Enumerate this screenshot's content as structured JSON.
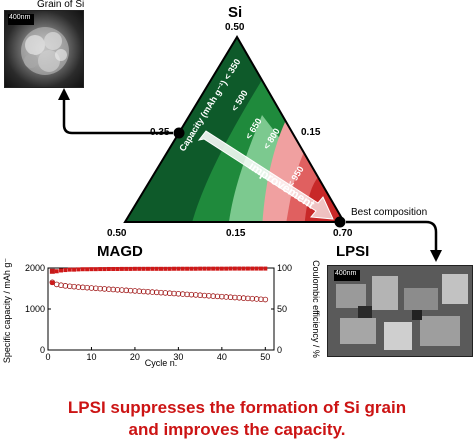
{
  "photos": {
    "grain": {
      "caption": "Grain of Si",
      "scale_text": "400nm"
    },
    "lpsi": {
      "caption": "Best composition",
      "scale_text": "400nm"
    }
  },
  "ternary": {
    "vertices": {
      "top": "Si",
      "left": "MAGD",
      "right": "LPSI"
    },
    "ticks": {
      "top": "0.50",
      "left_edge": "0.35",
      "right_edge": "0.15",
      "bottom_left": "0.50",
      "bottom_mid": "0.15",
      "bottom_right": "0.70"
    },
    "contour_labels": {
      "c350": "Capacity (mAh g⁻¹) < 350",
      "c500": "< 500",
      "c650": "< 650",
      "c800": "< 800",
      "c950": "< 950"
    },
    "arrow_label": "improvement",
    "colors": {
      "z1": "#0e5a2a",
      "z2": "#1f8a3c",
      "z3": "#7cc98f",
      "z4": "#f0a0a0",
      "z5": "#e06060",
      "z6": "#c82828"
    }
  },
  "chart_data": {
    "type": "scatter",
    "title": "",
    "xlabel": "Cycle n.",
    "ylabel_left": "Specific capacity / mAh g⁻¹",
    "ylabel_right": "Coulombic efficiency / %",
    "xlim": [
      0,
      52
    ],
    "ylim_left": [
      0,
      2000
    ],
    "ylim_right": [
      0,
      100
    ],
    "x_ticks": [
      "0",
      "10",
      "20",
      "30",
      "40",
      "50"
    ],
    "y_left_ticks": [
      "0",
      "1000",
      "2000"
    ],
    "y_right_ticks": [
      "0",
      "50",
      "100"
    ],
    "series": [
      {
        "axis": "left",
        "marker": "square-filled",
        "x": [
          1
        ],
        "values": [
          1920
        ]
      },
      {
        "axis": "left",
        "marker": "circle-open",
        "x": [
          1,
          2,
          3,
          4,
          5,
          6,
          7,
          8,
          9,
          10,
          11,
          12,
          13,
          14,
          15,
          16,
          17,
          18,
          19,
          20,
          21,
          22,
          23,
          24,
          25,
          26,
          27,
          28,
          29,
          30,
          31,
          32,
          33,
          34,
          35,
          36,
          37,
          38,
          39,
          40,
          41,
          42,
          43,
          44,
          45,
          46,
          47,
          48,
          49,
          50
        ],
        "values": [
          1650,
          1600,
          1580,
          1565,
          1555,
          1545,
          1535,
          1528,
          1520,
          1512,
          1505,
          1497,
          1490,
          1483,
          1476,
          1469,
          1462,
          1455,
          1448,
          1441,
          1434,
          1427,
          1420,
          1413,
          1406,
          1399,
          1392,
          1385,
          1378,
          1371,
          1364,
          1357,
          1350,
          1343,
          1336,
          1329,
          1322,
          1315,
          1308,
          1301,
          1294,
          1287,
          1280,
          1273,
          1266,
          1259,
          1252,
          1245,
          1238,
          1231
        ]
      },
      {
        "axis": "right",
        "marker": "circle-filled",
        "x": [
          1,
          2,
          3,
          4,
          5,
          6,
          7,
          8,
          9,
          10,
          11,
          12,
          13,
          14,
          15,
          16,
          17,
          18,
          19,
          20,
          21,
          22,
          23,
          24,
          25,
          26,
          27,
          28,
          29,
          30,
          31,
          32,
          33,
          34,
          35,
          36,
          37,
          38,
          39,
          40,
          41,
          42,
          43,
          44,
          45,
          46,
          47,
          48,
          49,
          50
        ],
        "values": [
          82,
          96,
          97,
          97.5,
          98,
          98,
          98.3,
          98.5,
          98.5,
          98.6,
          98.6,
          98.7,
          98.7,
          98.8,
          98.8,
          98.8,
          98.9,
          98.9,
          98.9,
          99,
          99,
          99,
          99,
          99,
          99,
          99,
          99,
          99,
          99.1,
          99.1,
          99.1,
          99.1,
          99.1,
          99.1,
          99.2,
          99.2,
          99.2,
          99.2,
          99.2,
          99.2,
          99.2,
          99.3,
          99.3,
          99.3,
          99.3,
          99.3,
          99.3,
          99.3,
          99.3,
          99.3
        ]
      }
    ]
  },
  "conclusion": {
    "line1": "LPSI suppresses the formation of Si grain",
    "line2": "and improves the capacity."
  }
}
